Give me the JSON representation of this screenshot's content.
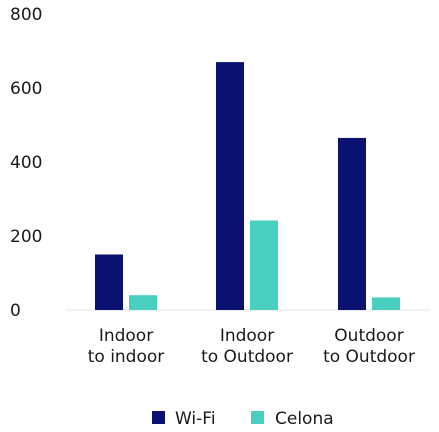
{
  "chart_data": {
    "type": "bar",
    "categories": [
      [
        "Indoor",
        "to indoor"
      ],
      [
        "Indoor",
        "to Outdoor"
      ],
      [
        "Outdoor",
        "to Outdoor"
      ]
    ],
    "series": [
      {
        "name": "Wi-Fi",
        "values": [
          150,
          670,
          465
        ],
        "color": "#0b1170"
      },
      {
        "name": "Celona",
        "values": [
          40,
          242,
          34
        ],
        "color": "#48cfc0"
      }
    ],
    "yticks": [
      "0",
      "200",
      "400",
      "600",
      "800"
    ],
    "ylim": [
      0,
      800
    ],
    "grid": false,
    "legend_position": "bottom-center",
    "title": "",
    "xlabel": "",
    "ylabel": ""
  }
}
